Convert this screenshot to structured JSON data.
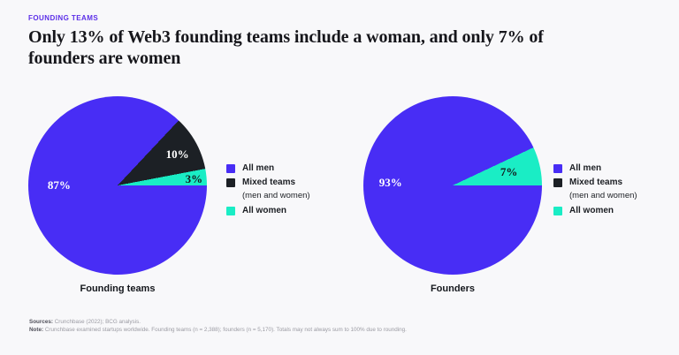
{
  "page": {
    "background": "#f8f8fa"
  },
  "header": {
    "eyebrow": "FOUNDING TEAMS",
    "title": "Only 13% of Web3 founding teams include a woman, and only 7% of founders are women",
    "title_lines": [
      "Only 13% of Web3 founding teams include a woman, and only 7% of",
      "founders are women"
    ]
  },
  "colors": {
    "accent_purple": "#5b2ee8",
    "pie_purple": "#482df5",
    "pie_black": "#1c2025",
    "pie_teal": "#1aedc5",
    "background": "#f8f8fa"
  },
  "legend": {
    "position": "right",
    "items": [
      {
        "label": "All men",
        "color": "#482df5"
      },
      {
        "label": "Mixed teams",
        "sublabel": "(men and women)",
        "color": "#1c2025"
      },
      {
        "label": "All women",
        "color": "#1aedc5"
      }
    ]
  },
  "chart_data": [
    {
      "type": "pie",
      "title": "Founding teams",
      "start_angle": "3-oclock",
      "direction": "clockwise",
      "slices": [
        {
          "label": "All men",
          "value": 87,
          "display": "87%",
          "color": "#482df5",
          "label_color": "#ffffff",
          "label_pos": {
            "dx": -0.655,
            "dy": 0.0
          }
        },
        {
          "label": "Mixed teams (men and women)",
          "value": 10,
          "display": "10%",
          "color": "#1c2025",
          "label_color": "#ffffff",
          "label_pos": {
            "dx": 0.67,
            "dy": -0.345
          }
        },
        {
          "label": "All women",
          "value": 3,
          "display": "3%",
          "color": "#1aedc5",
          "label_color": "#15181d",
          "label_pos": {
            "dx": 0.855,
            "dy": -0.07
          }
        }
      ]
    },
    {
      "type": "pie",
      "title": "Founders",
      "start_angle": "3-oclock",
      "direction": "clockwise",
      "slices": [
        {
          "label": "All men",
          "value": 93,
          "display": "93%",
          "color": "#482df5",
          "label_color": "#ffffff",
          "label_pos": {
            "dx": -0.695,
            "dy": -0.03
          }
        },
        {
          "label": "All women",
          "value": 7,
          "display": "7%",
          "color": "#1aedc5",
          "label_color": "#15181d",
          "label_pos": {
            "dx": 0.63,
            "dy": -0.15
          }
        }
      ]
    }
  ],
  "footer": {
    "sources_label": "Sources:",
    "sources_text": "Crunchbase (2022); BCG analysis.",
    "note_label": "Note:",
    "note_text": "Crunchbase examined startups worldwide. Founding teams (n = 2,388); founders (n = 5,170). Totals may not always sum to 100% due to rounding."
  }
}
